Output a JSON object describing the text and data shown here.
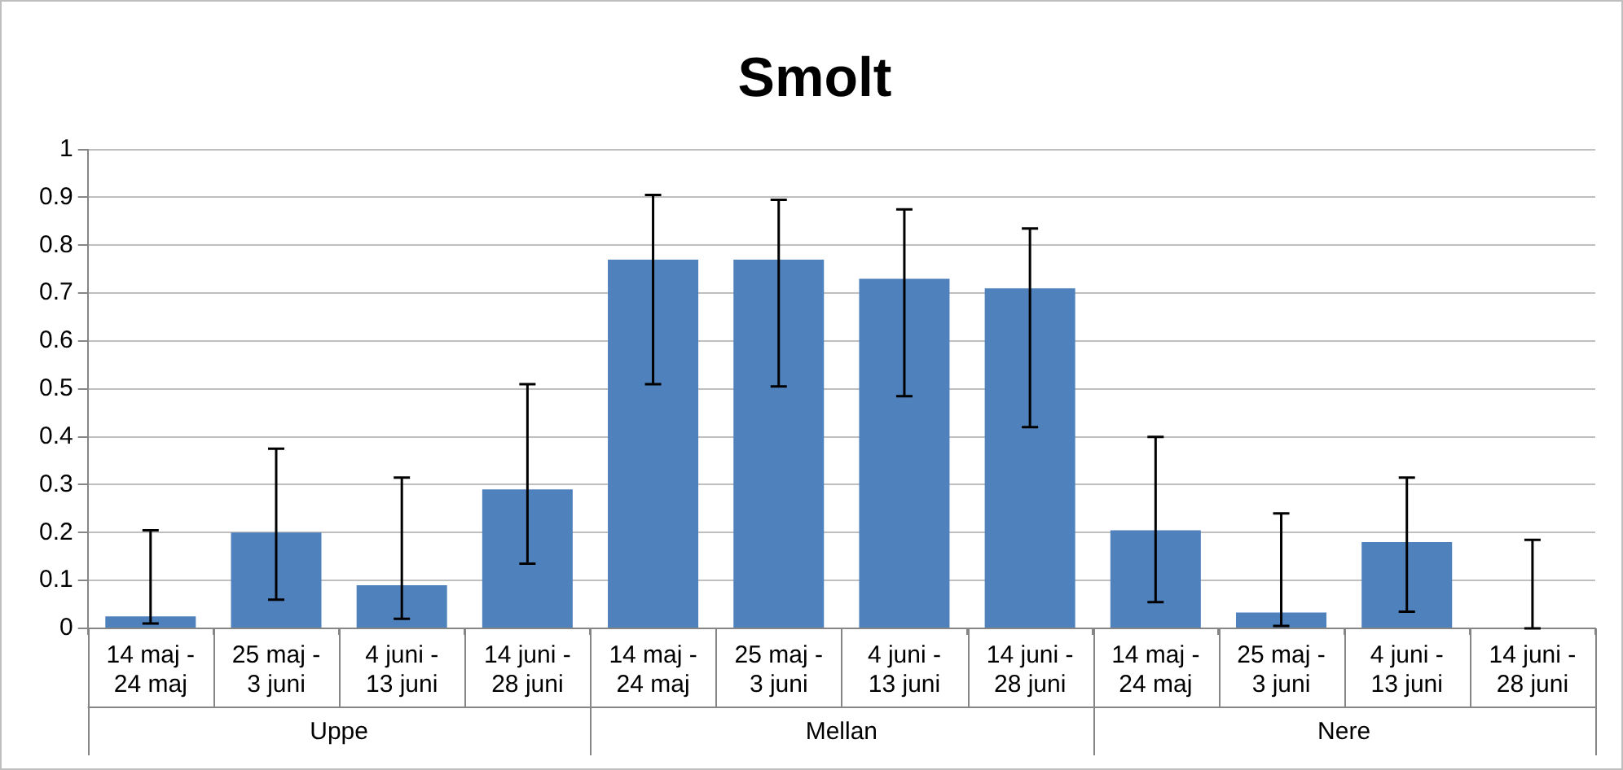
{
  "chart_data": {
    "type": "bar",
    "title": "Smolt",
    "categories": [
      "14 maj - 24 maj",
      "25 maj - 3 juni",
      "4 juni - 13 juni",
      "14 juni - 28 juni",
      "14 maj - 24 maj",
      "25 maj - 3 juni",
      "4 juni - 13 juni",
      "14 juni - 28 juni",
      "14 maj - 24 maj",
      "25 maj - 3 juni",
      "4 juni - 13 juni",
      "14 juni - 28 juni"
    ],
    "values": [
      0.025,
      0.2,
      0.09,
      0.29,
      0.77,
      0.77,
      0.73,
      0.71,
      0.205,
      0.033,
      0.18,
      0
    ],
    "errors": [
      [
        0.01,
        0.205
      ],
      [
        0.06,
        0.375
      ],
      [
        0.02,
        0.315
      ],
      [
        0.135,
        0.51
      ],
      [
        0.51,
        0.905
      ],
      [
        0.505,
        0.895
      ],
      [
        0.485,
        0.875
      ],
      [
        0.42,
        0.835
      ],
      [
        0.055,
        0.4
      ],
      [
        0.005,
        0.24
      ],
      [
        0.035,
        0.315
      ],
      [
        0,
        0.185
      ]
    ],
    "color": "#4f81bd",
    "annotations": [
      "Uppe",
      "Mellan",
      "Nere"
    ],
    "ylim": [
      0,
      1
    ],
    "yticks": [
      0,
      0.1,
      0.2,
      0.3,
      0.4,
      0.5,
      0.6,
      0.7,
      0.8,
      0.9,
      1
    ],
    "grid": "y",
    "legend": false
  }
}
